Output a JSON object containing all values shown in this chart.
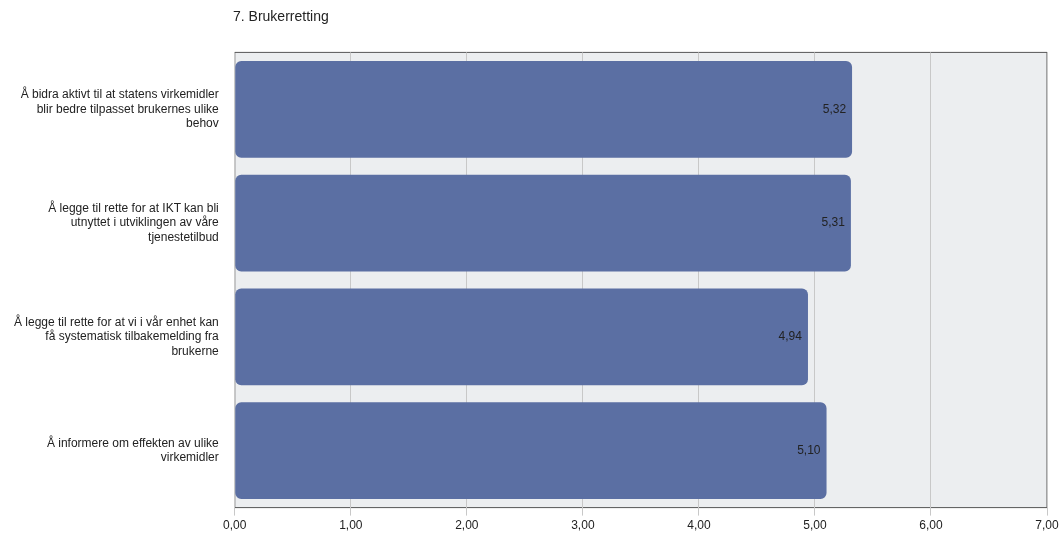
{
  "chart_data": {
    "type": "bar",
    "orientation": "horizontal",
    "title": "7. Brukerretting",
    "categories": [
      "Å bidra aktivt til at statens virkemidler blir bedre tilpasset brukernes ulike behov",
      "Å legge til rette for at IKT kan bli utnyttet i utviklingen av våre tjenestetilbud",
      "Å legge til rette for at vi i vår enhet kan få systematisk tilbakemelding fra brukerne",
      "Å informere om effekten av ulike virkemidler"
    ],
    "values": [
      5.32,
      5.31,
      4.94,
      5.1
    ],
    "value_labels": [
      "5,32",
      "5,31",
      "4,94",
      "5,10"
    ],
    "color": "#5b6fa3",
    "xlim": [
      0,
      7
    ],
    "xticks": [
      {
        "value": 0,
        "label": "0,00"
      },
      {
        "value": 1,
        "label": "1,00"
      },
      {
        "value": 2,
        "label": "2,00"
      },
      {
        "value": 3,
        "label": "3,00"
      },
      {
        "value": 4,
        "label": "4,00"
      },
      {
        "value": 5,
        "label": "5,00"
      },
      {
        "value": 6,
        "label": "6,00"
      },
      {
        "value": 7,
        "label": "7,00"
      }
    ],
    "grid": "x",
    "legend": false
  }
}
